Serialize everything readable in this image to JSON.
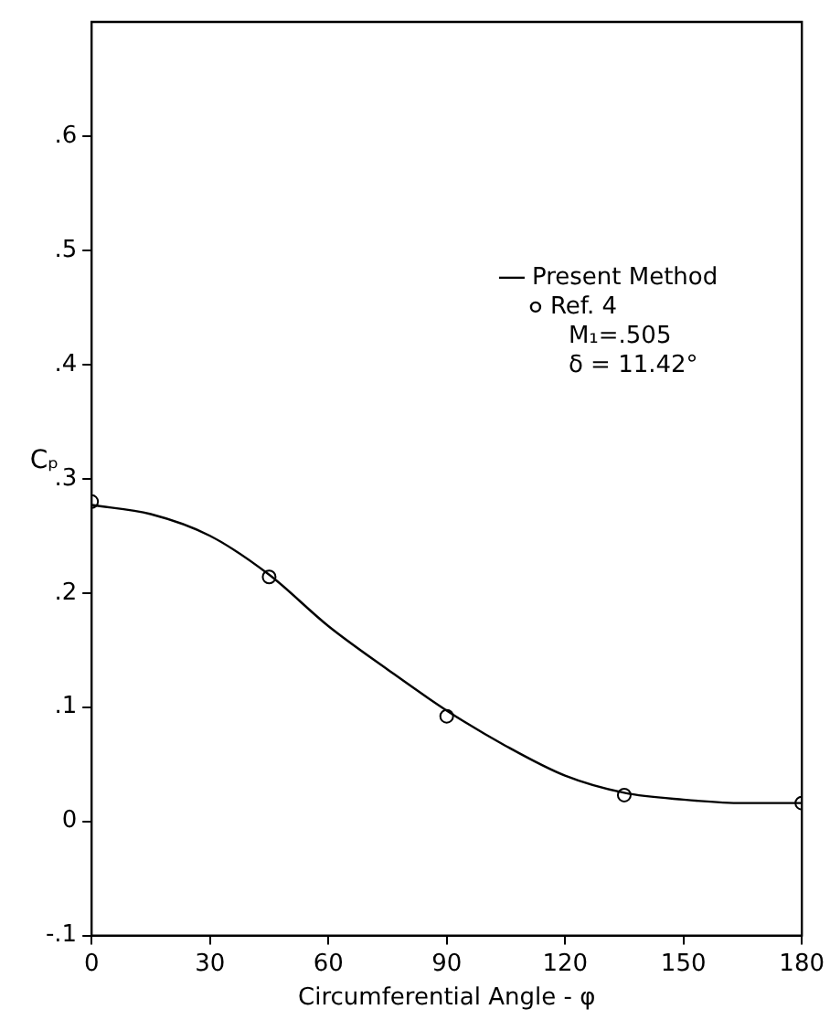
{
  "chart_data": {
    "type": "line",
    "xlabel": "Circumferential Angle - φ",
    "ylabel": "Cₚ",
    "xlim": [
      0,
      180
    ],
    "xticks": [
      0,
      30,
      60,
      90,
      120,
      150,
      180
    ],
    "ylim": [
      -0.1,
      0.7
    ],
    "yticks": [
      {
        "value": -0.1,
        "label": "-.1"
      },
      {
        "value": 0,
        "label": "0"
      },
      {
        "value": 0.1,
        "label": ".1"
      },
      {
        "value": 0.2,
        "label": ".2"
      },
      {
        "value": 0.3,
        "label": ".3"
      },
      {
        "value": 0.4,
        "label": ".4"
      },
      {
        "value": 0.5,
        "label": ".5"
      },
      {
        "value": 0.6,
        "label": ".6"
      }
    ],
    "grid": false,
    "legend": "top right",
    "annotations": [
      "M₁=.505",
      "δ = 11.42°"
    ],
    "series": [
      {
        "name": "Present Method",
        "color": "#000000",
        "marker": "none",
        "line_style": "solid",
        "x": [
          0,
          15,
          30,
          45,
          60,
          75,
          90,
          105,
          120,
          135,
          150,
          165,
          180
        ],
        "values": [
          0.277,
          0.269,
          0.25,
          0.216,
          0.171,
          0.133,
          0.097,
          0.066,
          0.04,
          0.025,
          0.019,
          0.016,
          0.016
        ]
      },
      {
        "name": "Ref. 4",
        "type": "scatter",
        "color": "#000000",
        "marker": "circle",
        "x": [
          0,
          45,
          90,
          135,
          180
        ],
        "values": [
          0.28,
          0.214,
          0.092,
          0.023,
          0.016
        ]
      }
    ]
  }
}
